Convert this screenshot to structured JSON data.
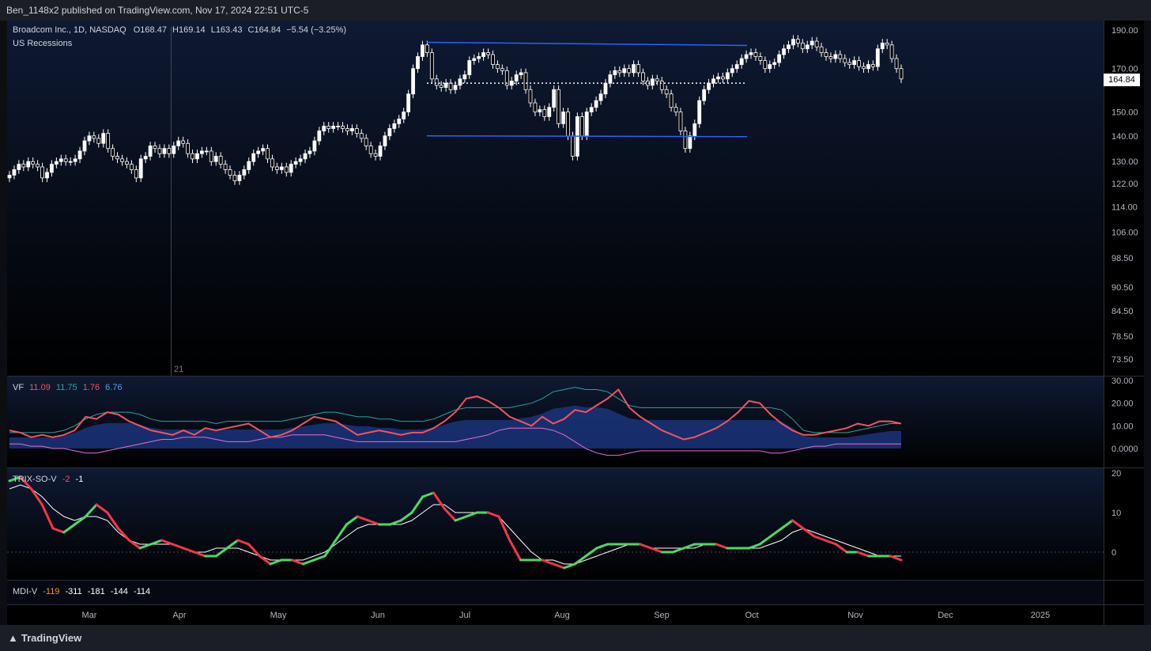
{
  "header": {
    "publisher_line": "Ben_1148x2 published on TradingView.com, Nov 17, 2024 22:51 UTC-5"
  },
  "footer": {
    "brand": "TradingView"
  },
  "main_legend": {
    "title": "Broadcom Inc., 1D, NASDAQ",
    "o_label": "O",
    "o_value": "168.47",
    "h_label": "H",
    "h_value": "169.14",
    "l_label": "L",
    "l_value": "163.43",
    "c_label": "C",
    "c_value": "164.84",
    "change": "−5.54 (−3.25%)",
    "overlay": "US Recessions",
    "last_price": "164.84",
    "marker": "21"
  },
  "vf_legend": {
    "name": "VF",
    "v1": "11.09",
    "v2": "11.75",
    "v3": "1.76",
    "v4": "6.76"
  },
  "trix_legend": {
    "name": "TRIX-SO-V",
    "v1": "-2",
    "v2": "-1"
  },
  "mdi_legend": {
    "name": "MDI-V",
    "v1": "-119",
    "v2": "-311",
    "v3": "-181",
    "v4": "-144",
    "v5": "-114"
  },
  "colors": {
    "up": "#ffffff",
    "down": "#ffffff",
    "channel": "#2962ff",
    "vf_red": "#f7525f",
    "vf_teal": "#26a69a",
    "vf_pink": "#e96ccd",
    "vf_blue": "#2962ff",
    "trix_green": "#4cd964",
    "trix_red": "#f23645",
    "signal": "#ffffff",
    "mdi_orange": "#ff9800"
  },
  "chart_data": [
    {
      "type": "candlestick",
      "title": "Broadcom Inc., 1D, NASDAQ",
      "price_scale": "log",
      "price_ticks": [
        190.0,
        170.0,
        150.0,
        140.0,
        130.0,
        122.0,
        114.0,
        106.0,
        98.5,
        90.5,
        84.5,
        78.5,
        73.5
      ],
      "time_labels": [
        "Mar",
        "Apr",
        "May",
        "Jun",
        "Jul",
        "Aug",
        "Sep",
        "Oct",
        "Nov",
        "Dec",
        "2025"
      ],
      "close_series": [
        125,
        127,
        129,
        128,
        130,
        129,
        128,
        124,
        126,
        129,
        130,
        131,
        130,
        130,
        131,
        134,
        138,
        140,
        139,
        137,
        141,
        135,
        132,
        131,
        130,
        129,
        127,
        124,
        131,
        132,
        136,
        135,
        133,
        135,
        133,
        136,
        138,
        137,
        133,
        131,
        133,
        134,
        134,
        130,
        132,
        129,
        127,
        125,
        123,
        125,
        127,
        130,
        133,
        134,
        135,
        131,
        128,
        127,
        128,
        126,
        129,
        130,
        131,
        133,
        134,
        138,
        142,
        144,
        143,
        144,
        144,
        143,
        142,
        143,
        141,
        139,
        136,
        133,
        132,
        136,
        140,
        143,
        145,
        147,
        150,
        158,
        170,
        176,
        182,
        178,
        165,
        162,
        161,
        163,
        160,
        162,
        165,
        167,
        174,
        175,
        176,
        178,
        177,
        172,
        170,
        169,
        162,
        164,
        167,
        168,
        160,
        154,
        150,
        151,
        148,
        152,
        160,
        145,
        150,
        140,
        132,
        148,
        140,
        150,
        152,
        155,
        158,
        163,
        167,
        169,
        168,
        170,
        168,
        172,
        168,
        164,
        162,
        165,
        164,
        160,
        158,
        152,
        150,
        142,
        135,
        140,
        145,
        155,
        160,
        163,
        165,
        166,
        165,
        168,
        170,
        172,
        175,
        177,
        178,
        176,
        174,
        170,
        172,
        173,
        177,
        180,
        182,
        185,
        183,
        180,
        182,
        184,
        181,
        178,
        176,
        175,
        177,
        175,
        173,
        172,
        174,
        171,
        170,
        172,
        171,
        180,
        183,
        182,
        175,
        170,
        165
      ],
      "channel_upper": 183,
      "channel_lower": 140,
      "dotted_mid": 163,
      "last_close": 164.84
    },
    {
      "type": "line",
      "title": "VF",
      "y_ticks": [
        30.0,
        20.0,
        10.0,
        0.0
      ],
      "series": [
        {
          "color_key": "vf_red",
          "values": [
            8,
            7,
            5,
            6,
            5,
            6,
            8,
            14,
            13,
            16,
            15,
            12,
            10,
            8,
            7,
            6,
            8,
            6,
            9,
            8,
            9,
            10,
            11,
            8,
            5,
            6,
            8,
            11,
            14,
            13,
            12,
            9,
            6,
            7,
            8,
            7,
            6,
            7,
            7,
            9,
            12,
            16,
            22,
            23,
            21,
            18,
            14,
            12,
            10,
            14,
            11,
            13,
            17,
            16,
            19,
            22,
            26,
            18,
            14,
            11,
            8,
            6,
            4,
            5,
            7,
            9,
            12,
            16,
            21,
            20,
            15,
            11,
            8,
            6,
            6,
            7,
            8,
            9,
            11,
            10,
            12,
            12,
            11
          ]
        },
        {
          "color_key": "vf_teal",
          "values": [
            7,
            7,
            7,
            7,
            7,
            8,
            10,
            13,
            15,
            16,
            16,
            16,
            15,
            13,
            12,
            12,
            12,
            12,
            12,
            11,
            12,
            12,
            12,
            12,
            12,
            12,
            13,
            14,
            15,
            16,
            16,
            15,
            14,
            14,
            13,
            13,
            12,
            12,
            12,
            13,
            15,
            17,
            18,
            18,
            18,
            18,
            18,
            19,
            20,
            22,
            25,
            26,
            27,
            26,
            26,
            25,
            22,
            19,
            18,
            18,
            18,
            18,
            18,
            18,
            18,
            18,
            18,
            18,
            18,
            18,
            18,
            17,
            13,
            8,
            7,
            7,
            7,
            7,
            8,
            9,
            10,
            11,
            11
          ]
        },
        {
          "color_key": "vf_pink",
          "values": [
            2,
            2,
            1,
            1,
            0,
            0,
            -1,
            -2,
            -2,
            -1,
            0,
            1,
            2,
            3,
            4,
            4,
            5,
            5,
            5,
            4,
            3,
            3,
            3,
            4,
            5,
            5,
            6,
            6,
            6,
            6,
            5,
            4,
            3,
            3,
            3,
            3,
            3,
            3,
            3,
            3,
            3,
            3,
            4,
            5,
            6,
            8,
            9,
            9,
            9,
            9,
            8,
            6,
            3,
            0,
            -2,
            -3,
            -3,
            -2,
            -1,
            -1,
            -1,
            -1,
            -1,
            -1,
            -1,
            -1,
            -1,
            -1,
            -1,
            -1,
            -2,
            -2,
            -1,
            0,
            1,
            1,
            2,
            2,
            2,
            2,
            2,
            2,
            2
          ]
        }
      ]
    },
    {
      "type": "line",
      "title": "TRIX-SO-V",
      "y_ticks": [
        20,
        10,
        0
      ],
      "series": [
        {
          "name": "-2",
          "values": [
            18,
            19,
            16,
            12,
            6,
            5,
            7,
            9,
            12,
            10,
            6,
            3,
            1,
            2,
            3,
            2,
            1,
            0,
            -1,
            -1,
            1,
            3,
            2,
            -1,
            -3,
            -2,
            -2,
            -3,
            -2,
            -1,
            3,
            7,
            9,
            8,
            7,
            7,
            8,
            10,
            14,
            15,
            11,
            8,
            9,
            10,
            10,
            9,
            3,
            -2,
            -2,
            -2,
            -3,
            -4,
            -3,
            -1,
            1,
            2,
            2,
            2,
            2,
            1,
            0,
            0,
            1,
            2,
            2,
            2,
            1,
            1,
            1,
            2,
            4,
            6,
            8,
            6,
            4,
            3,
            2,
            0,
            0,
            -1,
            -1,
            -1,
            -2
          ]
        },
        {
          "name": "-1",
          "values": [
            16,
            17,
            16,
            14,
            11,
            9,
            8,
            9,
            9,
            8,
            5,
            3,
            2,
            2,
            2,
            2,
            1,
            0,
            0,
            1,
            1,
            1,
            0,
            -1,
            -2,
            -2,
            -2,
            -2,
            -1,
            0,
            2,
            4,
            6,
            7,
            7,
            7,
            7,
            8,
            10,
            12,
            12,
            10,
            10,
            10,
            10,
            9,
            6,
            3,
            0,
            -2,
            -2,
            -3,
            -3,
            -2,
            -1,
            0,
            1,
            2,
            2,
            1,
            1,
            1,
            1,
            1,
            2,
            2,
            1,
            1,
            1,
            1,
            2,
            3,
            5,
            6,
            5,
            4,
            3,
            2,
            1,
            0,
            -1,
            -1,
            -1
          ]
        }
      ]
    },
    {
      "type": "line",
      "title": "MDI-V",
      "series": [
        {
          "name": "MDI-V",
          "values": []
        }
      ]
    }
  ]
}
